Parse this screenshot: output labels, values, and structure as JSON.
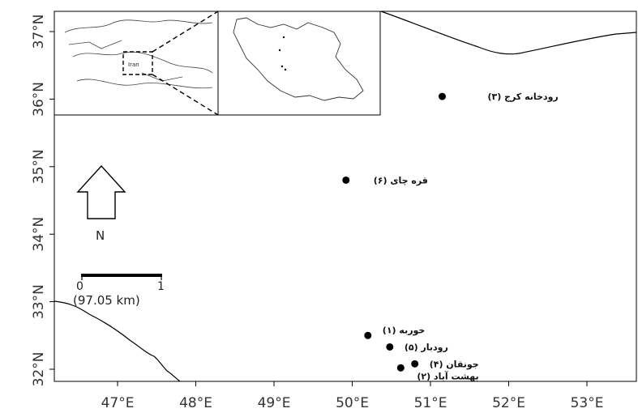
{
  "axes": {
    "x_ticks": [
      "47°E",
      "48°E",
      "49°E",
      "50°E",
      "51°E",
      "52°E",
      "53°E"
    ],
    "y_ticks": [
      "32°N",
      "33°N",
      "34°N",
      "35°N",
      "36°N",
      "37°N"
    ]
  },
  "north_arrow": {
    "label": "N"
  },
  "scale_bar": {
    "start": "0",
    "end": "1",
    "distance": "(97.05 km)"
  },
  "inset": {
    "country_label": "Iran"
  },
  "sites": [
    {
      "label": "رودخانه کرج (۳)",
      "lon": 51.15,
      "lat": 36.04
    },
    {
      "label": "قره چای (۶)",
      "lon": 49.92,
      "lat": 34.8
    },
    {
      "label": "خوربه (۱)",
      "lon": 50.2,
      "lat": 32.5
    },
    {
      "label": "رودبار (۵)",
      "lon": 50.48,
      "lat": 32.33
    },
    {
      "label": "جونقان (۴)",
      "lon": 50.8,
      "lat": 32.08
    },
    {
      "label": "بهشت آباد (۲)",
      "lon": 50.62,
      "lat": 32.02
    }
  ]
}
